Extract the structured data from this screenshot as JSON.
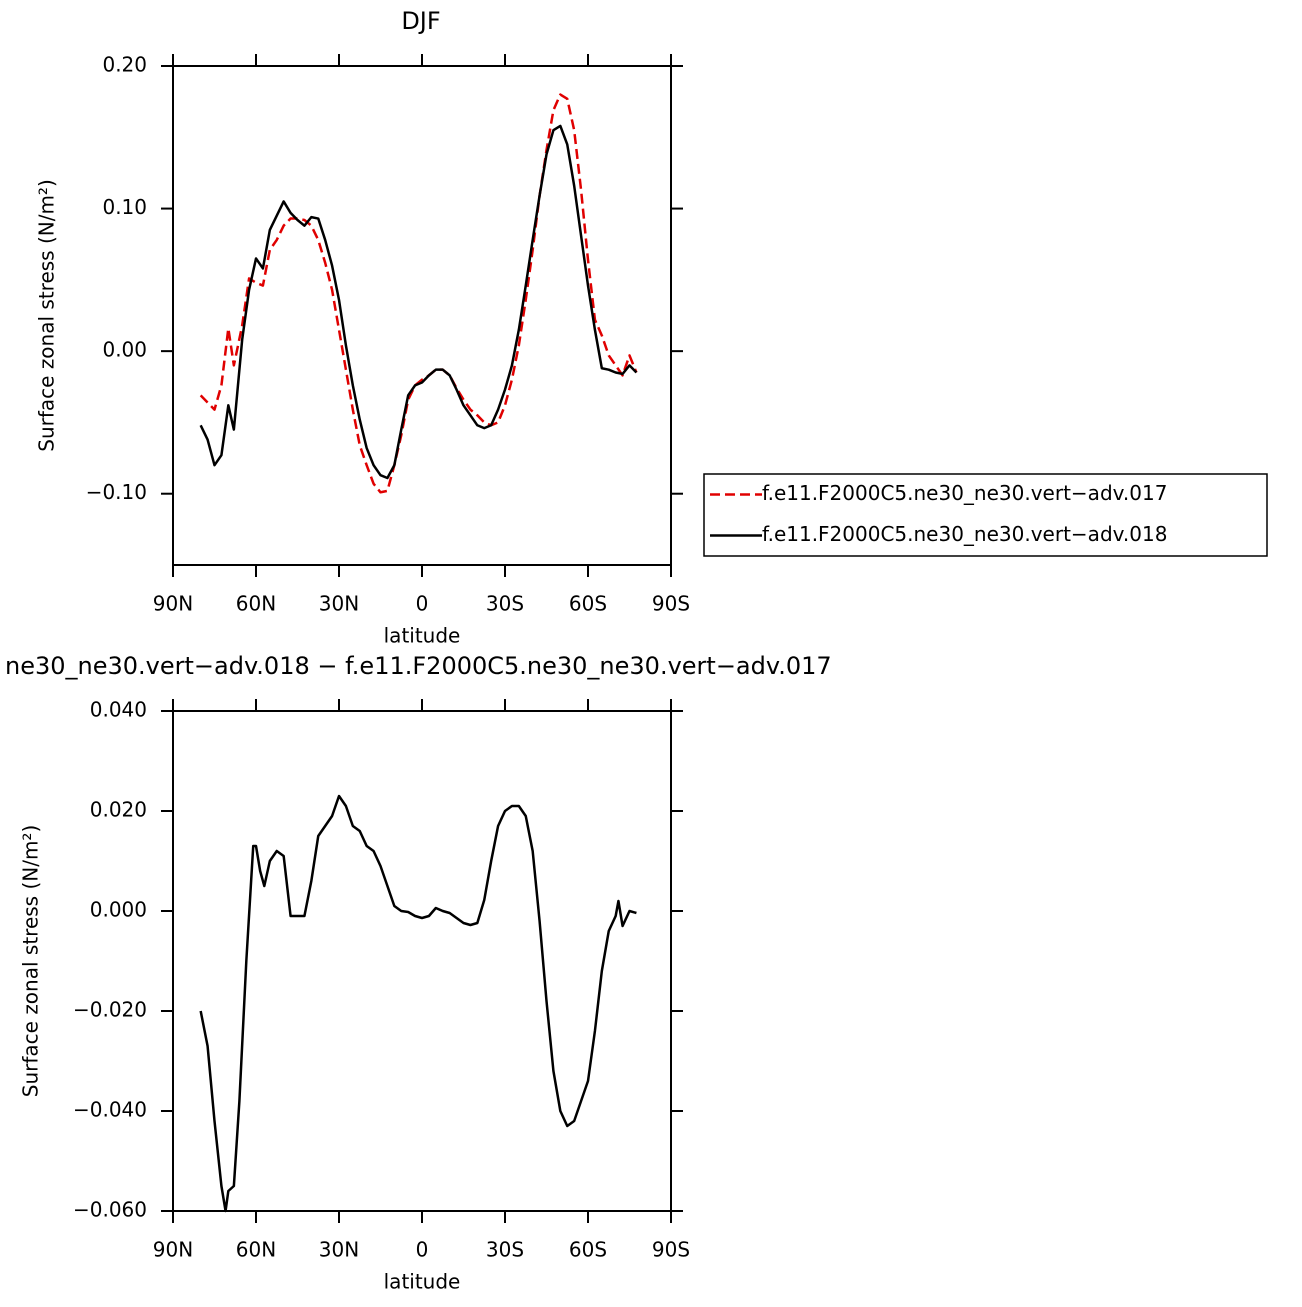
{
  "chart_data": [
    {
      "type": "line",
      "title": "DJF",
      "xlabel": "latitude",
      "ylabel": "Surface zonal stress (N/m²)",
      "xlim": [
        90,
        -90
      ],
      "ylim": [
        -0.15,
        0.2
      ],
      "xticks": [
        {
          "value": 90,
          "label": "90N"
        },
        {
          "value": 60,
          "label": "60N"
        },
        {
          "value": 30,
          "label": "30N"
        },
        0,
        {
          "value": -30,
          "label": "30S"
        },
        {
          "value": -60,
          "label": "60S"
        },
        {
          "value": -90,
          "label": "90S"
        }
      ],
      "yticks": [
        {
          "value": 0.2,
          "label": "0.20"
        },
        {
          "value": 0.1,
          "label": "0.10"
        },
        {
          "value": 0,
          "label": "0.00"
        },
        {
          "value": -0.1,
          "label": "−0.10"
        }
      ],
      "legend": "outside-right",
      "x": [
        80,
        77.5,
        75,
        72.5,
        70,
        68,
        65,
        62.5,
        60,
        57.5,
        55,
        52.5,
        50,
        47.5,
        45,
        42.5,
        40,
        37.5,
        35,
        32.5,
        30,
        27.5,
        25,
        22.5,
        20,
        17.5,
        15,
        12.5,
        10,
        7.5,
        5,
        2.5,
        0,
        -2.5,
        -5,
        -7.5,
        -10,
        -12.5,
        -15,
        -17.5,
        -20,
        -22.5,
        -25,
        -27.5,
        -30,
        -32.5,
        -35,
        -37.5,
        -40,
        -42.5,
        -45,
        -47.5,
        -50,
        -52.5,
        -55,
        -57.5,
        -60,
        -62.5,
        -65,
        -67.5,
        -70,
        -72.5,
        -75,
        -77.5
      ],
      "series": [
        {
          "name": "f.e11.F2000C5.ne30_ne30.vert−adv.017",
          "color": "#e00000",
          "style": "dashed",
          "values": [
            -0.031,
            -0.036,
            -0.041,
            -0.024,
            0.016,
            -0.01,
            0.018,
            0.051,
            0.048,
            0.046,
            0.071,
            0.078,
            0.088,
            0.093,
            0.093,
            0.092,
            0.088,
            0.078,
            0.062,
            0.043,
            0.015,
            -0.013,
            -0.041,
            -0.066,
            -0.08,
            -0.093,
            -0.099,
            -0.098,
            -0.08,
            -0.059,
            -0.034,
            -0.024,
            -0.02,
            -0.017,
            -0.013,
            -0.013,
            -0.017,
            -0.026,
            -0.034,
            -0.041,
            -0.045,
            -0.05,
            -0.052,
            -0.05,
            -0.038,
            -0.02,
            0.004,
            0.036,
            0.071,
            0.109,
            0.141,
            0.169,
            0.18,
            0.177,
            0.155,
            0.113,
            0.064,
            0.022,
            0.011,
            -0.003,
            -0.01,
            -0.017,
            -0.003,
            -0.015
          ]
        },
        {
          "name": "f.e11.F2000C5.ne30_ne30.vert−adv.018",
          "color": "#000000",
          "style": "solid",
          "values": [
            -0.052,
            -0.062,
            -0.08,
            -0.073,
            -0.038,
            -0.055,
            0.008,
            0.043,
            0.065,
            0.058,
            0.085,
            0.095,
            0.105,
            0.097,
            0.092,
            0.088,
            0.094,
            0.093,
            0.078,
            0.06,
            0.036,
            0.004,
            -0.024,
            -0.048,
            -0.068,
            -0.08,
            -0.087,
            -0.089,
            -0.08,
            -0.055,
            -0.031,
            -0.024,
            -0.022,
            -0.017,
            -0.013,
            -0.013,
            -0.017,
            -0.027,
            -0.038,
            -0.045,
            -0.052,
            -0.054,
            -0.052,
            -0.041,
            -0.027,
            -0.01,
            0.015,
            0.046,
            0.078,
            0.109,
            0.138,
            0.155,
            0.158,
            0.145,
            0.116,
            0.081,
            0.046,
            0.015,
            -0.012,
            -0.013,
            -0.015,
            -0.016,
            -0.01,
            -0.015
          ]
        }
      ]
    },
    {
      "type": "line",
      "title": "ne30_ne30.vert−adv.018 − f.e11.F2000C5.ne30_ne30.vert−adv.017",
      "xlabel": "latitude",
      "ylabel": "Surface zonal stress (N/m²)",
      "xlim": [
        90,
        -90
      ],
      "ylim": [
        -0.06,
        0.04
      ],
      "xticks": [
        {
          "value": 90,
          "label": "90N"
        },
        {
          "value": 60,
          "label": "60N"
        },
        {
          "value": 30,
          "label": "30N"
        },
        0,
        {
          "value": -30,
          "label": "30S"
        },
        {
          "value": -60,
          "label": "60S"
        },
        {
          "value": -90,
          "label": "90S"
        }
      ],
      "yticks": [
        {
          "value": 0.04,
          "label": "0.040"
        },
        {
          "value": 0.02,
          "label": "0.020"
        },
        {
          "value": 0,
          "label": "0.000"
        },
        {
          "value": -0.02,
          "label": "−0.020"
        },
        {
          "value": -0.04,
          "label": "−0.040"
        },
        {
          "value": -0.06,
          "label": "−0.060"
        }
      ],
      "x": [
        80,
        77.5,
        75,
        72.5,
        71,
        70,
        68,
        66,
        63.5,
        61,
        60,
        58.5,
        57,
        55,
        52.5,
        50,
        47.5,
        45,
        42.5,
        40,
        37.5,
        35,
        32.5,
        30,
        27.5,
        25,
        22.5,
        20,
        17.5,
        15,
        12.5,
        10,
        7.5,
        5,
        2.5,
        0,
        -2.5,
        -5,
        -7.5,
        -10,
        -12.5,
        -15,
        -17.5,
        -20,
        -22.5,
        -25,
        -27.5,
        -30,
        -32.5,
        -35,
        -37.5,
        -40,
        -42.5,
        -45,
        -47.5,
        -50,
        -52.5,
        -55,
        -57.5,
        -60,
        -62.5,
        -65,
        -67.5,
        -70,
        -71,
        -72.5,
        -75,
        -77.5
      ],
      "series": [
        {
          "color": "#000000",
          "style": "solid",
          "values": [
            -0.02,
            -0.027,
            -0.042,
            -0.055,
            -0.06,
            -0.056,
            -0.055,
            -0.038,
            -0.01,
            0.013,
            0.013,
            0.008,
            0.005,
            0.01,
            0.012,
            0.011,
            -0.001,
            -0.001,
            -0.001,
            0.006,
            0.015,
            0.017,
            0.019,
            0.023,
            0.021,
            0.017,
            0.016,
            0.013,
            0.012,
            0.009,
            0.005,
            0.001,
            0.0,
            -0.0002,
            -0.001,
            -0.0014,
            -0.001,
            0.0006,
            0.0,
            -0.0004,
            -0.0014,
            -0.0024,
            -0.0028,
            -0.0024,
            0.0022,
            0.01,
            0.017,
            0.02,
            0.021,
            0.021,
            0.019,
            0.012,
            -0.002,
            -0.018,
            -0.032,
            -0.04,
            -0.043,
            -0.042,
            -0.038,
            -0.034,
            -0.024,
            -0.012,
            -0.004,
            -0.001,
            0.002,
            -0.003,
            0.0,
            -0.0004
          ]
        }
      ]
    }
  ]
}
